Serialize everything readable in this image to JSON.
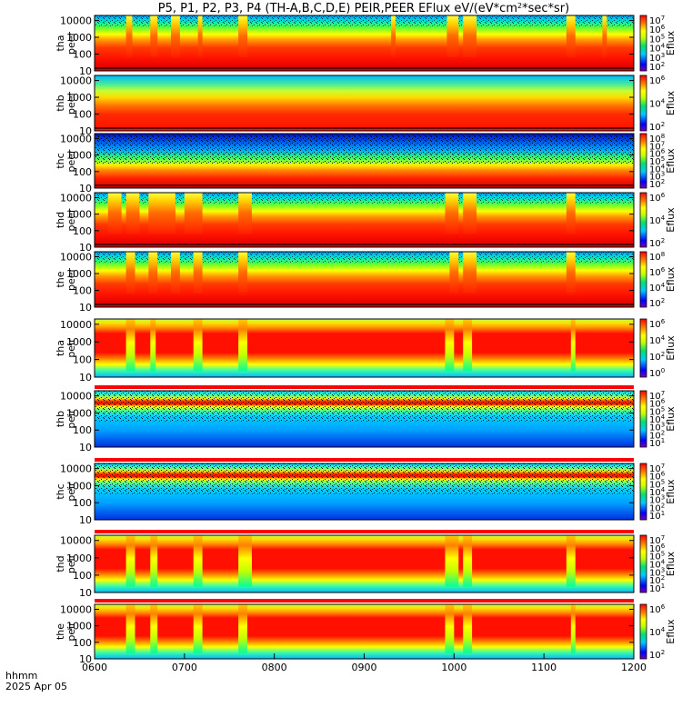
{
  "chart_data": {
    "type": "heatmap",
    "title": "P5, P1, P2, P3, P4 (TH-A,B,C,D,E) PEIR,PEER EFlux eV/(eV*cm",
    "title_sup": "2",
    "title_tail": "*sec*sr)",
    "x_ticks": [
      "0600",
      "0700",
      "0800",
      "0900",
      "1000",
      "1100",
      "1200"
    ],
    "x_range_hours": [
      6,
      12
    ],
    "footer_label": "hhmm",
    "footer_date": "2025 Apr 05",
    "y_scale": "log",
    "y_ticks": [
      "10",
      "100",
      "1000",
      "10000"
    ],
    "colorbar_label": "Eflux",
    "energy_gaps": [
      [
        9.95,
        10.2
      ]
    ],
    "panels": [
      {
        "probe": "tha",
        "species": "peer",
        "cb_ticks": [
          {
            "b": "10",
            "e": "2"
          },
          {
            "b": "10",
            "e": "3"
          },
          {
            "b": "10",
            "e": "4"
          },
          {
            "b": "10",
            "e": "5"
          },
          {
            "b": "10",
            "e": "6"
          },
          {
            "b": "10",
            "e": "7"
          }
        ],
        "bursts": [
          [
            6.35,
            6.42
          ],
          [
            6.62,
            6.7
          ],
          [
            6.85,
            6.95
          ],
          [
            7.15,
            7.2
          ],
          [
            7.6,
            7.7
          ],
          [
            9.3,
            9.35
          ],
          [
            9.92,
            10.05
          ],
          [
            10.1,
            10.25
          ],
          [
            11.25,
            11.35
          ],
          [
            11.65,
            11.7
          ]
        ]
      },
      {
        "probe": "thb",
        "species": "peer",
        "cb_ticks": [
          {
            "b": "10",
            "e": "2"
          },
          {
            "b": "10",
            "e": "4"
          },
          {
            "b": "10",
            "e": "6"
          }
        ],
        "bursts": []
      },
      {
        "probe": "thc",
        "species": "peer",
        "cb_ticks": [
          {
            "b": "10",
            "e": "2"
          },
          {
            "b": "10",
            "e": "3"
          },
          {
            "b": "10",
            "e": "4"
          },
          {
            "b": "10",
            "e": "5"
          },
          {
            "b": "10",
            "e": "6"
          },
          {
            "b": "10",
            "e": "7"
          },
          {
            "b": "10",
            "e": "8"
          }
        ],
        "bursts": []
      },
      {
        "probe": "thd",
        "species": "peer",
        "cb_ticks": [
          {
            "b": "10",
            "e": "2"
          },
          {
            "b": "10",
            "e": "4"
          },
          {
            "b": "10",
            "e": "6"
          }
        ],
        "bursts": [
          [
            6.15,
            6.3
          ],
          [
            6.35,
            6.5
          ],
          [
            6.6,
            6.9
          ],
          [
            7.0,
            7.2
          ],
          [
            7.6,
            7.75
          ],
          [
            9.9,
            10.05
          ],
          [
            10.1,
            10.25
          ],
          [
            11.25,
            11.35
          ]
        ]
      },
      {
        "probe": "the",
        "species": "peer",
        "cb_ticks": [
          {
            "b": "10",
            "e": "2"
          },
          {
            "b": "10",
            "e": "4"
          },
          {
            "b": "10",
            "e": "6"
          },
          {
            "b": "10",
            "e": "8"
          }
        ],
        "bursts": [
          [
            6.35,
            6.45
          ],
          [
            6.6,
            6.7
          ],
          [
            6.85,
            6.95
          ],
          [
            7.1,
            7.2
          ],
          [
            7.6,
            7.7
          ],
          [
            9.95,
            10.05
          ],
          [
            10.1,
            10.25
          ],
          [
            11.25,
            11.35
          ]
        ]
      },
      {
        "probe": "tha",
        "species": "peir",
        "cb_ticks": [
          {
            "b": "10",
            "e": "0"
          },
          {
            "b": "10",
            "e": "2"
          },
          {
            "b": "10",
            "e": "4"
          },
          {
            "b": "10",
            "e": "6"
          }
        ],
        "bursts": [
          [
            6.35,
            6.45
          ],
          [
            6.62,
            6.68
          ],
          [
            7.1,
            7.2
          ],
          [
            7.6,
            7.7
          ],
          [
            9.9,
            10.0
          ],
          [
            10.1,
            10.2
          ],
          [
            11.3,
            11.35
          ]
        ]
      },
      {
        "probe": "thb",
        "species": "peir",
        "cb_ticks": [
          {
            "b": "10",
            "e": "1"
          },
          {
            "b": "10",
            "e": "2"
          },
          {
            "b": "10",
            "e": "3"
          },
          {
            "b": "10",
            "e": "4"
          },
          {
            "b": "10",
            "e": "5"
          },
          {
            "b": "10",
            "e": "6"
          },
          {
            "b": "10",
            "e": "7"
          }
        ],
        "bursts": []
      },
      {
        "probe": "thc",
        "species": "peir",
        "cb_ticks": [
          {
            "b": "10",
            "e": "1"
          },
          {
            "b": "10",
            "e": "2"
          },
          {
            "b": "10",
            "e": "3"
          },
          {
            "b": "10",
            "e": "4"
          },
          {
            "b": "10",
            "e": "5"
          },
          {
            "b": "10",
            "e": "6"
          },
          {
            "b": "10",
            "e": "7"
          }
        ],
        "bursts": []
      },
      {
        "probe": "thd",
        "species": "peir",
        "cb_ticks": [
          {
            "b": "10",
            "e": "1"
          },
          {
            "b": "10",
            "e": "2"
          },
          {
            "b": "10",
            "e": "3"
          },
          {
            "b": "10",
            "e": "4"
          },
          {
            "b": "10",
            "e": "5"
          },
          {
            "b": "10",
            "e": "6"
          },
          {
            "b": "10",
            "e": "7"
          }
        ],
        "bursts": [
          [
            6.35,
            6.45
          ],
          [
            6.62,
            6.7
          ],
          [
            7.1,
            7.2
          ],
          [
            7.6,
            7.75
          ],
          [
            9.9,
            10.05
          ],
          [
            10.1,
            10.2
          ],
          [
            11.25,
            11.35
          ]
        ]
      },
      {
        "probe": "the",
        "species": "peir",
        "cb_ticks": [
          {
            "b": "10",
            "e": "2"
          },
          {
            "b": "10",
            "e": "4"
          },
          {
            "b": "10",
            "e": "6"
          }
        ],
        "bursts": [
          [
            6.35,
            6.45
          ],
          [
            6.62,
            6.7
          ],
          [
            7.1,
            7.2
          ],
          [
            7.6,
            7.7
          ],
          [
            9.9,
            10.0
          ],
          [
            10.1,
            10.2
          ],
          [
            11.3,
            11.35
          ]
        ]
      }
    ]
  }
}
